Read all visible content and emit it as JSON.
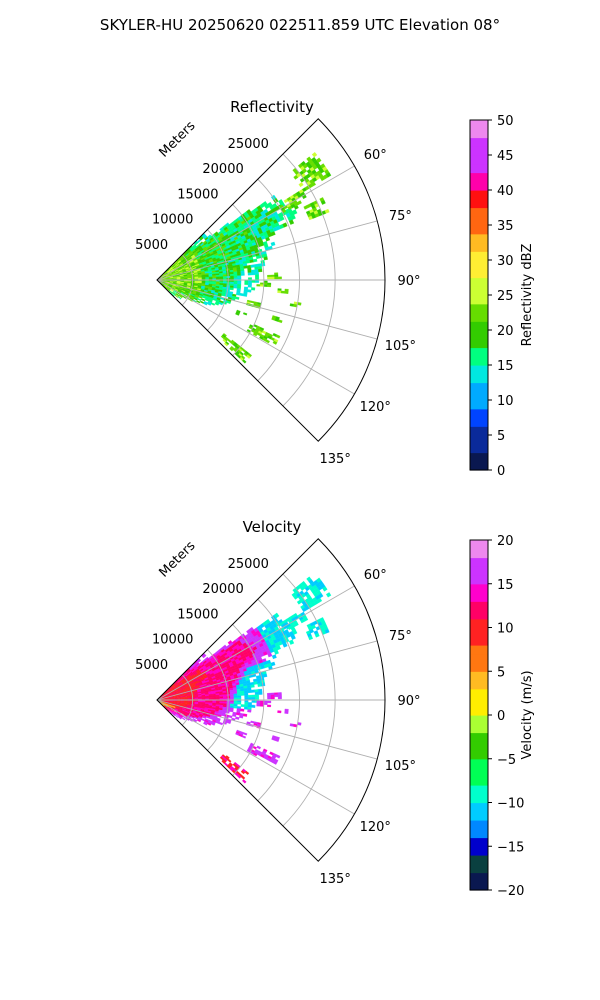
{
  "figure": {
    "title": "SKYLER-HU  20250620  022511.859 UTC Elevation 08°"
  },
  "chart_data": [
    {
      "type": "polar-sector",
      "title": "Reflectivity",
      "r_axis_label": "Meters",
      "r_ticks": [
        "5000",
        "10000",
        "15000",
        "20000",
        "25000"
      ],
      "theta_ticks": [
        "60°",
        "75°",
        "90°",
        "105°",
        "120°",
        "135°"
      ],
      "theta_range_deg": [
        45,
        135
      ],
      "r_range_m": [
        0,
        32000
      ],
      "grid": true,
      "colorbar": {
        "label": "Reflectivity dBZ",
        "ticks": [
          "0",
          "5",
          "10",
          "15",
          "20",
          "25",
          "30",
          "35",
          "40",
          "45",
          "50"
        ],
        "range": [
          0,
          50
        ]
      }
    },
    {
      "type": "polar-sector",
      "title": "Velocity",
      "r_axis_label": "Meters",
      "r_ticks": [
        "5000",
        "10000",
        "15000",
        "20000",
        "25000"
      ],
      "theta_ticks": [
        "60°",
        "75°",
        "90°",
        "105°",
        "120°",
        "135°"
      ],
      "theta_range_deg": [
        45,
        135
      ],
      "r_range_m": [
        0,
        32000
      ],
      "grid": true,
      "colorbar": {
        "label": "Velocity (m/s)",
        "ticks": [
          "20",
          "15",
          "10",
          "5",
          "0",
          "−5",
          "−10",
          "−15",
          "−20"
        ],
        "range": [
          -20,
          20
        ]
      }
    }
  ]
}
